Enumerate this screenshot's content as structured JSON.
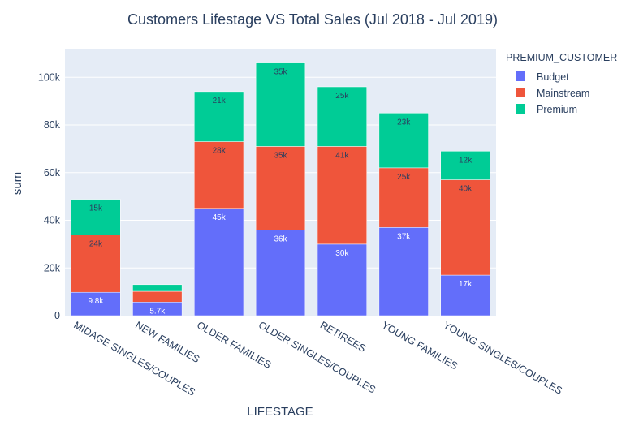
{
  "chart_data": {
    "type": "bar",
    "barmode": "stack",
    "title": "Customers Lifestage VS Total Sales (Jul 2018 - Jul 2019)",
    "xlabel": "LIFESTAGE",
    "ylabel": "sum",
    "ylim": [
      0,
      112000
    ],
    "yticks": [
      0,
      20000,
      40000,
      60000,
      80000,
      100000
    ],
    "ytick_labels": [
      "0",
      "20k",
      "40k",
      "60k",
      "80k",
      "100k"
    ],
    "grid": true,
    "legend": {
      "title": "PREMIUM_CUSTOMER",
      "position": "right"
    },
    "categories": [
      "MIDAGE SINGLES/COUPLES",
      "NEW FAMILIES",
      "OLDER FAMILIES",
      "OLDER SINGLES/COUPLES",
      "RETIREES",
      "YOUNG FAMILIES",
      "YOUNG SINGLES/COUPLES"
    ],
    "series": [
      {
        "name": "Budget",
        "color": "#636efa",
        "label_color": "#ffffff",
        "values": [
          9800,
          5700,
          45000,
          36000,
          30000,
          37000,
          17000
        ],
        "labels": [
          "9.8k",
          "5.7k",
          "45k",
          "36k",
          "30k",
          "37k",
          "17k"
        ]
      },
      {
        "name": "Mainstream",
        "color": "#ef553b",
        "label_color": "#2a3f5f",
        "values": [
          24000,
          4500,
          28000,
          35000,
          41000,
          25000,
          40000
        ],
        "labels": [
          "24k",
          "",
          "28k",
          "35k",
          "41k",
          "25k",
          "40k"
        ]
      },
      {
        "name": "Premium",
        "color": "#00cc96",
        "label_color": "#2a3f5f",
        "values": [
          15000,
          2800,
          21000,
          35000,
          25000,
          23000,
          12000
        ],
        "labels": [
          "15k",
          "",
          "21k",
          "35k",
          "25k",
          "23k",
          "12k"
        ]
      }
    ],
    "colors": {
      "plot_background": "#e5ecf6",
      "gridline": "#ffffff",
      "text": "#2a3f5f"
    }
  }
}
